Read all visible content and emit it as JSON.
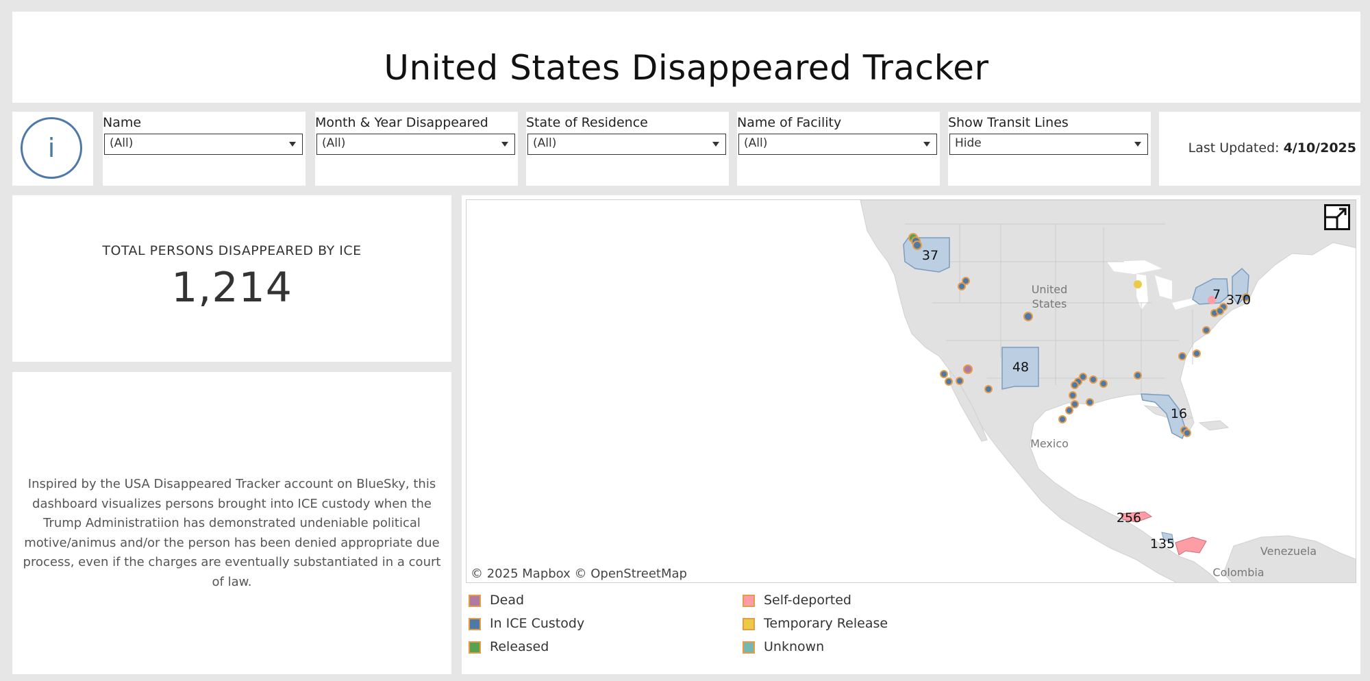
{
  "title": "United States Disappeared Tracker",
  "info": {
    "label": "i"
  },
  "filters": [
    {
      "label": "Name",
      "value": "(All)"
    },
    {
      "label": "Month & Year Disappeared",
      "value": "(All)"
    },
    {
      "label": "State of Residence",
      "value": "(All)"
    },
    {
      "label": "Name of Facility",
      "value": "(All)"
    },
    {
      "label": "Show Transit Lines",
      "value": "Hide"
    }
  ],
  "last_updated": {
    "label": "Last Updated: ",
    "date": "4/10/2025"
  },
  "total": {
    "label": "TOTAL PERSONS DISAPPEARED BY ICE",
    "value": "1,214"
  },
  "description": "Inspired by the USA Disappeared Tracker account on BlueSky, this dashboard visualizes persons brought into ICE custody when the Trump Administratiion has demonstrated undeniable political motive/animus and/or the person has been denied appropriate due process, even if the charges are eventually substantiated in a court of law.",
  "map": {
    "attribution": "© 2025 Mapbox  © OpenStreetMap",
    "places": {
      "us": [
        "United",
        "States"
      ],
      "mexico": "Mexico",
      "venezuela": "Venezuela",
      "colombia": "Colombia"
    },
    "state_counts": {
      "washington": "37",
      "new_york": "7",
      "new_england": "370",
      "new_mexico": "48",
      "florida": "16",
      "honduras": "256",
      "panama": "135"
    }
  },
  "legend": [
    {
      "label": "Dead",
      "color": "#b07aa1"
    },
    {
      "label": "Self-deported",
      "color": "#ff9da7"
    },
    {
      "label": "In ICE Custody",
      "color": "#4e79a7"
    },
    {
      "label": "Temporary Release",
      "color": "#edc948"
    },
    {
      "label": "Released",
      "color": "#59a14f"
    },
    {
      "label": "Unknown",
      "color": "#76b7b2"
    }
  ],
  "colors": {
    "custody": "#4e79a7",
    "outline": "#e39c4a",
    "highlight_fill": "#bccfe2",
    "self_deported": "#ff9da7",
    "land": "#e1e1e1"
  }
}
